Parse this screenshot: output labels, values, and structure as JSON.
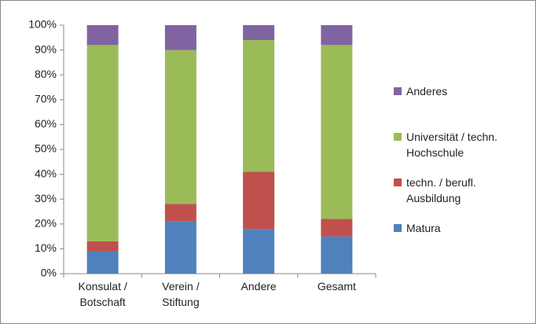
{
  "chart_data": {
    "type": "stacked_bar",
    "categories": [
      "Konsulat / Botschaft",
      "Verein / Stiftung",
      "Andere",
      "Gesamt"
    ],
    "series": [
      {
        "name": "Matura",
        "color": "#4f81bd",
        "values": [
          9,
          21,
          18,
          15
        ]
      },
      {
        "name": "techn. / berufl. Ausbildung",
        "color": "#c0504d",
        "values": [
          4,
          7,
          23,
          7
        ]
      },
      {
        "name": "Universität / techn. Hochschule",
        "color": "#9bbb59",
        "values": [
          79,
          62,
          53,
          70
        ]
      },
      {
        "name": "Anderes",
        "color": "#8064a2",
        "values": [
          8,
          10,
          6,
          8
        ]
      }
    ],
    "ylim": [
      0,
      100
    ],
    "yticks": [
      {
        "value": 0,
        "label": "0%"
      },
      {
        "value": 10,
        "label": "10%"
      },
      {
        "value": 20,
        "label": "20%"
      },
      {
        "value": 30,
        "label": "30%"
      },
      {
        "value": 40,
        "label": "40%"
      },
      {
        "value": 50,
        "label": "50%"
      },
      {
        "value": 60,
        "label": "60%"
      },
      {
        "value": 70,
        "label": "70%"
      },
      {
        "value": 80,
        "label": "80%"
      },
      {
        "value": 90,
        "label": "90%"
      },
      {
        "value": 100,
        "label": "100%"
      }
    ],
    "grid": false,
    "legend": "right"
  }
}
